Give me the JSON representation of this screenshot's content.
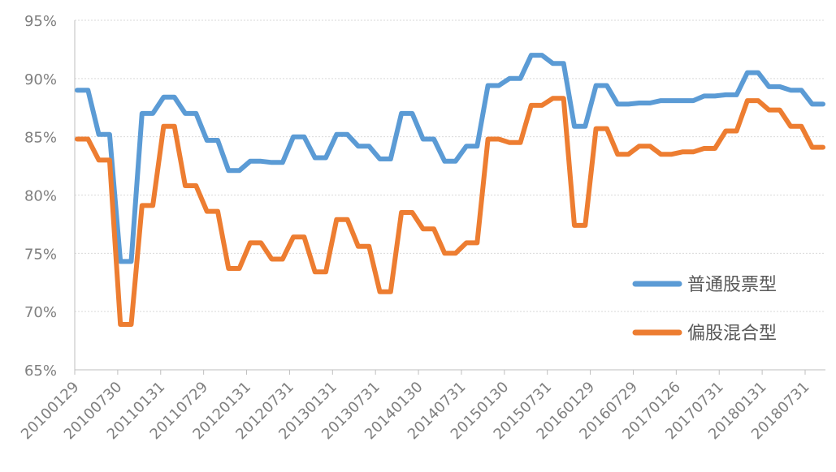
{
  "chart_data": {
    "type": "line",
    "title": "",
    "xlabel": "",
    "ylabel": "",
    "ylim": [
      0.65,
      0.95
    ],
    "yticks": [
      "95%",
      "90%",
      "85%",
      "80%",
      "75%",
      "70%",
      "65%"
    ],
    "grid": true,
    "legend_position": "right",
    "x_tick_labels": [
      "20100129",
      "20100730",
      "20110131",
      "20110729",
      "20120131",
      "20120731",
      "20130131",
      "20130731",
      "20140130",
      "20140731",
      "20150130",
      "20150731",
      "20160129",
      "20160729",
      "20170126",
      "20170731",
      "20180131",
      "20180731"
    ],
    "series": [
      {
        "name": "普通股票型",
        "color": "#5b9bd5",
        "values": [
          0.89,
          0.89,
          0.852,
          0.852,
          0.743,
          0.743,
          0.87,
          0.87,
          0.884,
          0.884,
          0.87,
          0.87,
          0.847,
          0.847,
          0.821,
          0.821,
          0.829,
          0.829,
          0.828,
          0.828,
          0.85,
          0.85,
          0.832,
          0.832,
          0.852,
          0.852,
          0.842,
          0.842,
          0.831,
          0.831,
          0.87,
          0.87,
          0.848,
          0.848,
          0.829,
          0.829,
          0.842,
          0.842,
          0.894,
          0.894,
          0.9,
          0.9,
          0.92,
          0.92,
          0.913,
          0.913,
          0.859,
          0.859,
          0.894,
          0.894,
          0.878,
          0.878,
          0.879,
          0.879,
          0.881,
          0.881,
          0.881,
          0.881,
          0.885,
          0.885,
          0.886,
          0.886,
          0.905,
          0.905,
          0.893,
          0.893,
          0.89,
          0.89,
          0.878,
          0.878
        ]
      },
      {
        "name": "偏股混合型",
        "color": "#ed7d31",
        "values": [
          0.848,
          0.848,
          0.83,
          0.83,
          0.689,
          0.689,
          0.791,
          0.791,
          0.859,
          0.859,
          0.808,
          0.808,
          0.786,
          0.786,
          0.737,
          0.737,
          0.759,
          0.759,
          0.745,
          0.745,
          0.764,
          0.764,
          0.734,
          0.734,
          0.779,
          0.779,
          0.756,
          0.756,
          0.717,
          0.717,
          0.785,
          0.785,
          0.771,
          0.771,
          0.75,
          0.75,
          0.759,
          0.759,
          0.848,
          0.848,
          0.845,
          0.845,
          0.877,
          0.877,
          0.883,
          0.883,
          0.774,
          0.774,
          0.857,
          0.857,
          0.835,
          0.835,
          0.842,
          0.842,
          0.835,
          0.835,
          0.837,
          0.837,
          0.84,
          0.84,
          0.855,
          0.855,
          0.881,
          0.881,
          0.873,
          0.873,
          0.859,
          0.859,
          0.841,
          0.841
        ]
      }
    ]
  }
}
